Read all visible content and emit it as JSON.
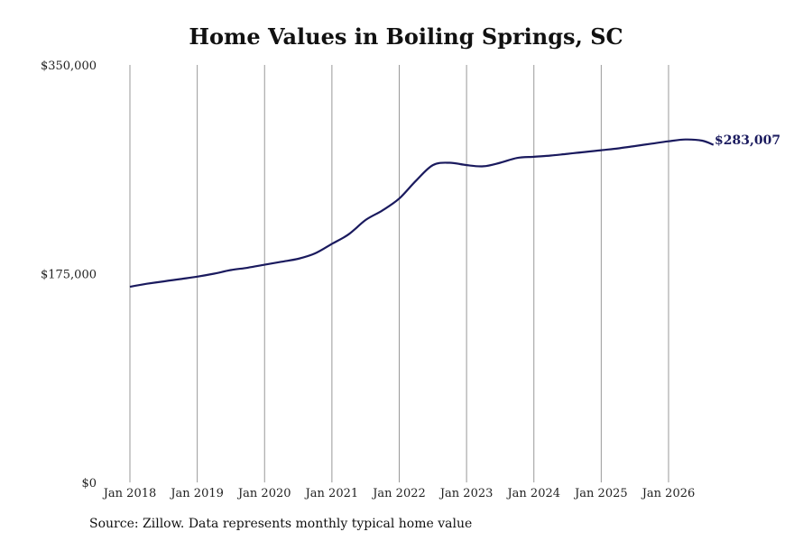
{
  "chart_data": {
    "type": "line",
    "title": "Home Values in Boiling Springs, SC",
    "source": "Source: Zillow. Data represents monthly typical home value",
    "xlabel": "",
    "ylabel": "",
    "x_ticks": [
      "Jan 2018",
      "Jan 2019",
      "Jan 2020",
      "Jan 2021",
      "Jan 2022",
      "Jan 2023",
      "Jan 2024",
      "Jan 2025",
      "Jan 2026"
    ],
    "y_ticks": [
      "$0",
      "$175,000",
      "$350,000"
    ],
    "ylim": [
      0,
      350000
    ],
    "xlim": [
      "2018-01",
      "2026-09"
    ],
    "grid": "vertical",
    "line_color": "#1a1a5e",
    "series": [
      {
        "end_label": "$283,007",
        "points": [
          [
            "2018-01",
            164000
          ],
          [
            "2018-04",
            166500
          ],
          [
            "2018-07",
            168500
          ],
          [
            "2018-10",
            170500
          ],
          [
            "2019-01",
            172500
          ],
          [
            "2019-04",
            175000
          ],
          [
            "2019-07",
            178000
          ],
          [
            "2019-10",
            180000
          ],
          [
            "2020-01",
            182500
          ],
          [
            "2020-04",
            185000
          ],
          [
            "2020-07",
            187500
          ],
          [
            "2020-10",
            192000
          ],
          [
            "2021-01",
            200000
          ],
          [
            "2021-04",
            208000
          ],
          [
            "2021-07",
            220000
          ],
          [
            "2021-10",
            228000
          ],
          [
            "2022-01",
            238000
          ],
          [
            "2022-04",
            253000
          ],
          [
            "2022-07",
            266000
          ],
          [
            "2022-10",
            268000
          ],
          [
            "2023-01",
            266000
          ],
          [
            "2023-04",
            265000
          ],
          [
            "2023-07",
            268000
          ],
          [
            "2023-10",
            272000
          ],
          [
            "2024-01",
            273000
          ],
          [
            "2024-04",
            274000
          ],
          [
            "2024-07",
            275500
          ],
          [
            "2024-10",
            277000
          ],
          [
            "2025-01",
            278500
          ],
          [
            "2025-04",
            280000
          ],
          [
            "2025-07",
            282000
          ],
          [
            "2025-10",
            284000
          ],
          [
            "2026-01",
            286000
          ],
          [
            "2026-04",
            287500
          ],
          [
            "2026-07",
            286500
          ],
          [
            "2026-09",
            283007
          ]
        ]
      }
    ]
  }
}
